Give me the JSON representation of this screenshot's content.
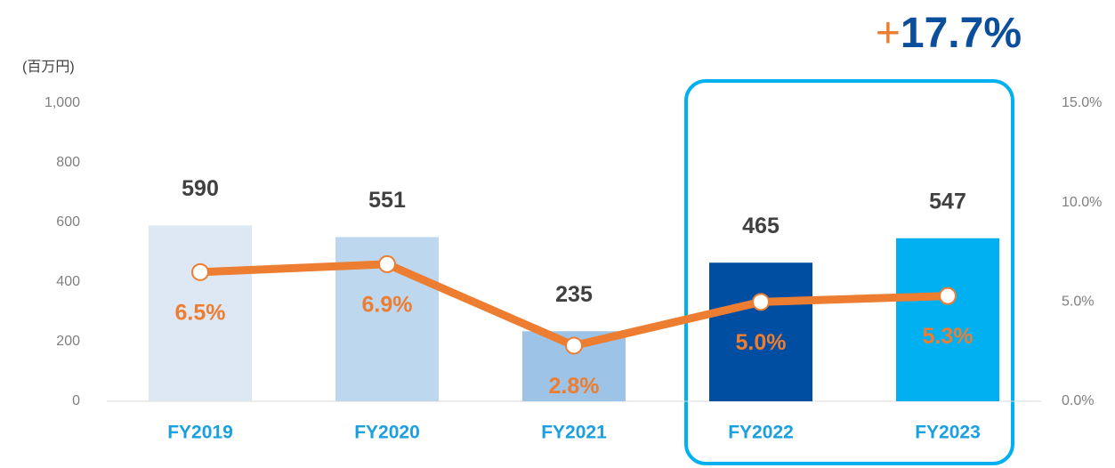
{
  "chart_data": {
    "type": "combo",
    "y_label": "(百万円)",
    "annotation_parts": [
      "+",
      "17.7%"
    ],
    "annotation_colors": [
      "#ed7d31",
      "#0b4f9c"
    ],
    "categories": [
      "FY2019",
      "FY2020",
      "FY2021",
      "FY2022",
      "FY2023"
    ],
    "series": [
      {
        "type": "bar",
        "values": [
          590,
          551,
          235,
          465,
          547
        ],
        "colors": [
          "#dee8f4",
          "#bdd7ee",
          "#9dc3e6",
          "#004ea2",
          "#00b0f0"
        ]
      },
      {
        "type": "line",
        "axis": "y2",
        "color": "#ed7d31",
        "values": [
          6.5,
          6.9,
          2.8,
          5.0,
          5.3
        ],
        "value_labels": [
          "6.5%",
          "6.9%",
          "2.8%",
          "5.0%",
          "5.3%"
        ]
      }
    ],
    "ylim": [
      0,
      1000
    ],
    "yticks": [
      0,
      200,
      400,
      600,
      800,
      {
        "value": 1000,
        "label": "1,000"
      }
    ],
    "y2lim": [
      0,
      15
    ],
    "y2ticks": [
      {
        "value": 0,
        "label": "0.0%"
      },
      {
        "value": 5,
        "label": "5.0%"
      },
      {
        "value": 10,
        "label": "10.0%"
      },
      {
        "value": 15,
        "label": "15.0%"
      }
    ]
  }
}
